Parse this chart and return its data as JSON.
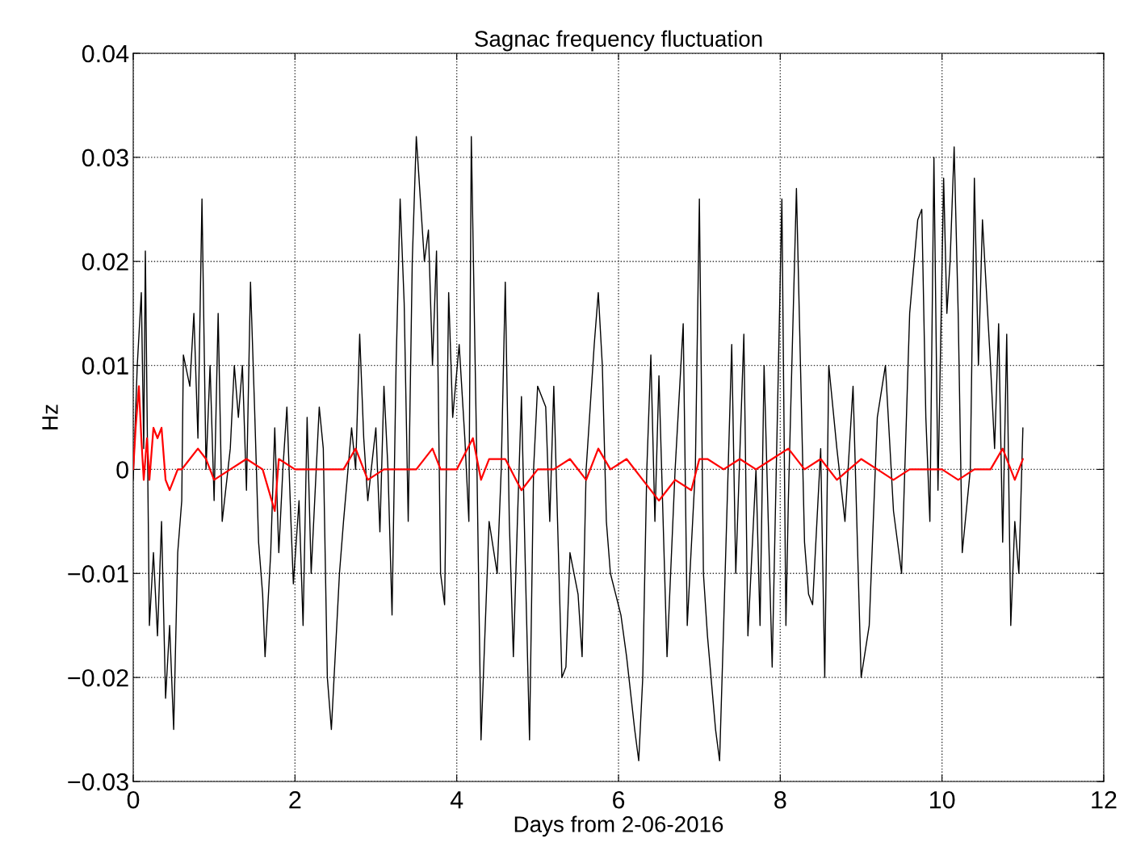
{
  "chart_data": {
    "type": "line",
    "title": "Sagnac frequency fluctuation",
    "xlabel": "Days from 2-06-2016",
    "ylabel": "Hz",
    "xlim": [
      0,
      12
    ],
    "xticks": [
      0,
      2,
      4,
      6,
      8,
      10,
      12
    ],
    "ylim": [
      -0.03,
      0.04
    ],
    "yticks": [
      {
        "value": -0.03,
        "label": "−0.03"
      },
      {
        "value": -0.02,
        "label": "−0.02"
      },
      {
        "value": -0.01,
        "label": "−0.01"
      },
      0,
      0.01,
      0.02,
      0.03,
      0.04
    ],
    "grid": true,
    "line_style": "solid",
    "marker": "none",
    "series": [
      {
        "color": "#000000",
        "x": [
          0.0,
          0.05,
          0.1,
          0.13,
          0.15,
          0.2,
          0.25,
          0.3,
          0.35,
          0.4,
          0.45,
          0.5,
          0.55,
          0.6,
          0.62,
          0.7,
          0.75,
          0.8,
          0.85,
          0.9,
          0.95,
          1.0,
          1.05,
          1.1,
          1.2,
          1.25,
          1.3,
          1.35,
          1.4,
          1.45,
          1.5,
          1.55,
          1.6,
          1.63,
          1.7,
          1.75,
          1.8,
          1.85,
          1.9,
          1.95,
          1.98,
          2.05,
          2.1,
          2.15,
          2.2,
          2.3,
          2.35,
          2.4,
          2.45,
          2.55,
          2.6,
          2.7,
          2.75,
          2.8,
          2.85,
          2.9,
          3.0,
          3.05,
          3.1,
          3.15,
          3.2,
          3.25,
          3.3,
          3.35,
          3.4,
          3.45,
          3.5,
          3.55,
          3.6,
          3.65,
          3.7,
          3.75,
          3.8,
          3.85,
          3.9,
          3.95,
          4.03,
          4.1,
          4.15,
          4.18,
          4.25,
          4.3,
          4.4,
          4.5,
          4.55,
          4.6,
          4.65,
          4.7,
          4.75,
          4.8,
          4.85,
          4.9,
          4.95,
          5.0,
          5.1,
          5.15,
          5.2,
          5.3,
          5.35,
          5.4,
          5.5,
          5.55,
          5.6,
          5.7,
          5.75,
          5.8,
          5.85,
          5.9,
          6.03,
          6.1,
          6.2,
          6.25,
          6.3,
          6.35,
          6.4,
          6.45,
          6.5,
          6.6,
          6.7,
          6.8,
          6.85,
          6.95,
          7.0,
          7.05,
          7.1,
          7.2,
          7.25,
          7.3,
          7.4,
          7.45,
          7.55,
          7.6,
          7.7,
          7.75,
          7.8,
          7.9,
          8.02,
          8.07,
          8.1,
          8.2,
          8.25,
          8.3,
          8.35,
          8.4,
          8.5,
          8.55,
          8.6,
          8.7,
          8.8,
          8.9,
          9.0,
          9.1,
          9.2,
          9.3,
          9.4,
          9.5,
          9.6,
          9.7,
          9.75,
          9.8,
          9.85,
          9.9,
          9.95,
          10.02,
          10.06,
          10.1,
          10.15,
          10.2,
          10.25,
          10.35,
          10.4,
          10.45,
          10.5,
          10.6,
          10.65,
          10.7,
          10.75,
          10.8,
          10.85,
          10.9,
          10.95,
          11.0
        ],
        "values": [
          -0.001,
          0.01,
          0.017,
          0.002,
          0.021,
          -0.015,
          -0.008,
          -0.016,
          -0.005,
          -0.022,
          -0.015,
          -0.025,
          -0.008,
          -0.003,
          0.011,
          0.008,
          0.015,
          0.003,
          0.026,
          0.0,
          0.01,
          -0.003,
          0.015,
          -0.005,
          0.002,
          0.01,
          0.005,
          0.01,
          -0.002,
          0.018,
          0.006,
          -0.007,
          -0.012,
          -0.018,
          -0.008,
          0.004,
          -0.008,
          0.0,
          0.006,
          -0.005,
          -0.011,
          -0.003,
          -0.015,
          0.005,
          -0.01,
          0.006,
          0.002,
          -0.02,
          -0.025,
          -0.01,
          -0.005,
          0.004,
          0.0,
          0.013,
          0.003,
          -0.003,
          0.004,
          -0.006,
          0.008,
          0.0,
          -0.014,
          0.01,
          0.026,
          0.016,
          -0.005,
          0.02,
          0.032,
          0.026,
          0.02,
          0.023,
          0.01,
          0.021,
          -0.01,
          -0.013,
          0.017,
          0.005,
          0.012,
          0.003,
          -0.005,
          0.032,
          0.0,
          -0.026,
          -0.005,
          -0.01,
          0.0,
          0.018,
          -0.005,
          -0.018,
          -0.005,
          0.007,
          -0.01,
          -0.026,
          0.0,
          0.008,
          0.006,
          -0.005,
          0.008,
          -0.02,
          -0.019,
          -0.008,
          -0.012,
          -0.018,
          0.0,
          0.012,
          0.017,
          0.01,
          -0.005,
          -0.01,
          -0.014,
          -0.018,
          -0.025,
          -0.028,
          -0.02,
          0.0,
          0.011,
          -0.005,
          0.009,
          -0.018,
          0.0,
          0.014,
          -0.015,
          0.0,
          0.026,
          -0.01,
          -0.016,
          -0.025,
          -0.028,
          -0.015,
          0.012,
          -0.01,
          0.013,
          -0.016,
          0.0,
          -0.015,
          0.01,
          -0.019,
          0.026,
          -0.015,
          -0.003,
          0.027,
          0.01,
          -0.007,
          -0.012,
          -0.013,
          0.002,
          -0.02,
          0.01,
          0.002,
          -0.005,
          0.008,
          -0.02,
          -0.015,
          0.005,
          0.01,
          -0.004,
          -0.01,
          0.015,
          0.024,
          0.025,
          0.005,
          -0.005,
          0.03,
          -0.002,
          0.028,
          0.015,
          0.02,
          0.031,
          0.015,
          -0.008,
          0.0,
          0.028,
          0.01,
          0.024,
          0.01,
          0.002,
          0.014,
          -0.007,
          0.013,
          -0.015,
          -0.005,
          -0.01,
          0.004
        ]
      },
      {
        "color": "#ff0000",
        "x": [
          0.0,
          0.03,
          0.07,
          0.1,
          0.13,
          0.17,
          0.2,
          0.25,
          0.3,
          0.35,
          0.4,
          0.45,
          0.5,
          0.55,
          0.6,
          0.7,
          0.8,
          0.9,
          1.0,
          1.2,
          1.4,
          1.6,
          1.75,
          1.8,
          2.0,
          2.2,
          2.4,
          2.6,
          2.75,
          2.9,
          3.1,
          3.3,
          3.5,
          3.7,
          3.8,
          4.0,
          4.2,
          4.3,
          4.4,
          4.6,
          4.8,
          5.0,
          5.2,
          5.4,
          5.6,
          5.75,
          5.9,
          6.1,
          6.3,
          6.5,
          6.6,
          6.7,
          6.9,
          7.0,
          7.1,
          7.3,
          7.5,
          7.7,
          7.9,
          8.1,
          8.3,
          8.5,
          8.7,
          9.0,
          9.2,
          9.4,
          9.6,
          9.8,
          10.0,
          10.2,
          10.4,
          10.6,
          10.75,
          10.9,
          11.0
        ],
        "values": [
          0.0,
          0.004,
          0.008,
          0.003,
          -0.001,
          0.003,
          -0.001,
          0.004,
          0.003,
          0.004,
          -0.001,
          -0.002,
          -0.001,
          0.0,
          0.0,
          0.001,
          0.002,
          0.001,
          -0.001,
          0.0,
          0.001,
          0.0,
          -0.004,
          0.001,
          0.0,
          0.0,
          0.0,
          0.0,
          0.002,
          -0.001,
          0.0,
          0.0,
          0.0,
          0.002,
          0.0,
          0.0,
          0.003,
          -0.001,
          0.001,
          0.001,
          -0.002,
          0.0,
          0.0,
          0.001,
          -0.001,
          0.002,
          0.0,
          0.001,
          -0.001,
          -0.003,
          -0.002,
          -0.001,
          -0.002,
          0.001,
          0.001,
          0.0,
          0.001,
          0.0,
          0.001,
          0.002,
          0.0,
          0.001,
          -0.001,
          0.001,
          0.0,
          -0.001,
          0.0,
          0.0,
          0.0,
          -0.001,
          0.0,
          0.0,
          0.002,
          -0.001,
          0.001
        ]
      }
    ]
  }
}
